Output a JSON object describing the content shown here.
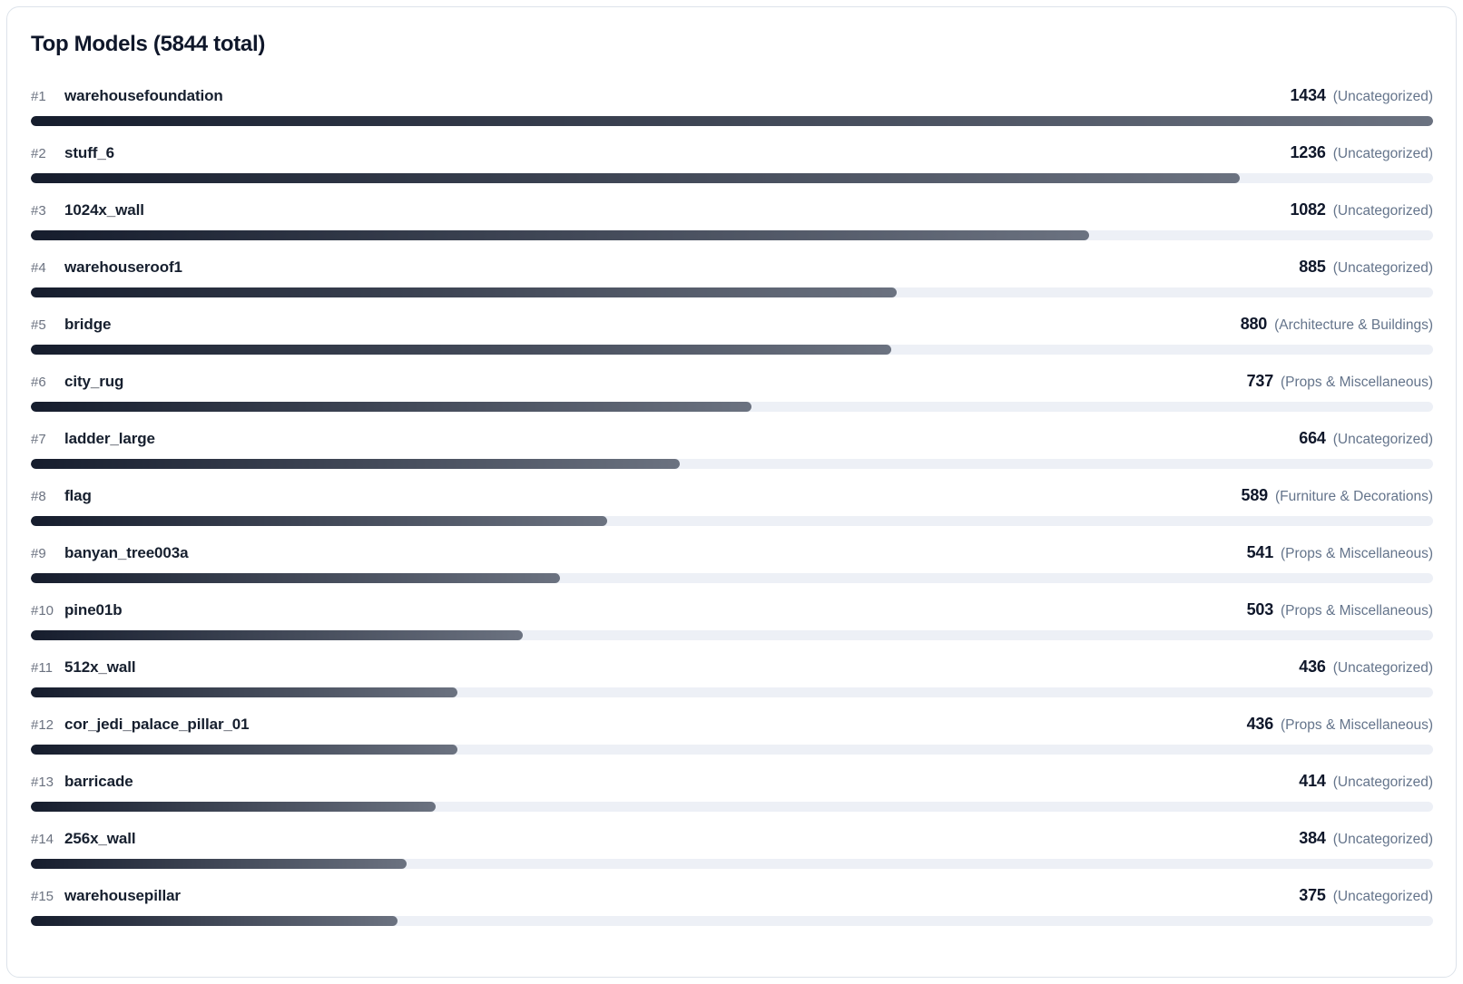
{
  "card": {
    "title": "Top Models (5844 total)"
  },
  "chart_data": {
    "type": "bar",
    "orientation": "horizontal",
    "title": "Top Models (5844 total)",
    "total": 5844,
    "max_value": 1434,
    "items": [
      {
        "rank": "#1",
        "name": "warehousefoundation",
        "value": 1434,
        "category": "(Uncategorized)"
      },
      {
        "rank": "#2",
        "name": "stuff_6",
        "value": 1236,
        "category": "(Uncategorized)"
      },
      {
        "rank": "#3",
        "name": "1024x_wall",
        "value": 1082,
        "category": "(Uncategorized)"
      },
      {
        "rank": "#4",
        "name": "warehouseroof1",
        "value": 885,
        "category": "(Uncategorized)"
      },
      {
        "rank": "#5",
        "name": "bridge",
        "value": 880,
        "category": "(Architecture & Buildings)"
      },
      {
        "rank": "#6",
        "name": "city_rug",
        "value": 737,
        "category": "(Props & Miscellaneous)"
      },
      {
        "rank": "#7",
        "name": "ladder_large",
        "value": 664,
        "category": "(Uncategorized)"
      },
      {
        "rank": "#8",
        "name": "flag",
        "value": 589,
        "category": "(Furniture & Decorations)"
      },
      {
        "rank": "#9",
        "name": "banyan_tree003a",
        "value": 541,
        "category": "(Props & Miscellaneous)"
      },
      {
        "rank": "#10",
        "name": "pine01b",
        "value": 503,
        "category": "(Props & Miscellaneous)"
      },
      {
        "rank": "#11",
        "name": "512x_wall",
        "value": 436,
        "category": "(Uncategorized)"
      },
      {
        "rank": "#12",
        "name": "cor_jedi_palace_pillar_01",
        "value": 436,
        "category": "(Props & Miscellaneous)"
      },
      {
        "rank": "#13",
        "name": "barricade",
        "value": 414,
        "category": "(Uncategorized)"
      },
      {
        "rank": "#14",
        "name": "256x_wall",
        "value": 384,
        "category": "(Uncategorized)"
      },
      {
        "rank": "#15",
        "name": "warehousepillar",
        "value": 375,
        "category": "(Uncategorized)"
      }
    ],
    "colors": {
      "bar_gradient_start": "#161d2d",
      "bar_gradient_end": "#6b7280",
      "track": "#edf0f6",
      "title_text": "#0f172a",
      "name_text": "#161f2e",
      "value_text": "#0f172a",
      "rank_text": "#6b7280",
      "category_text": "#64748b",
      "card_border": "#dde3ea",
      "card_background": "#ffffff"
    }
  }
}
